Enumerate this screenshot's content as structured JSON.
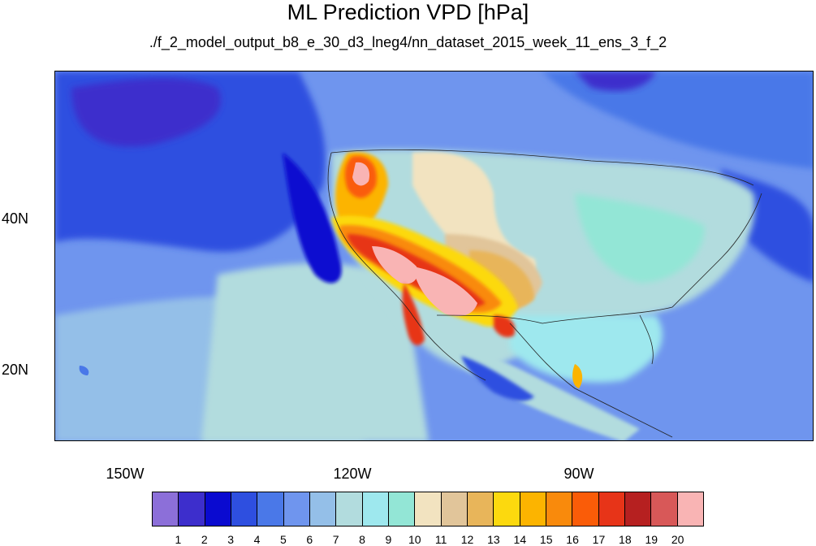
{
  "title": "ML Prediction VPD [hPa]",
  "subtitle": "./f_2_model_output_b8_e_30_d3_lneg4/nn_dataset_2015_week_11_ens_3_f_2",
  "lat_labels": [
    "40N",
    "20N"
  ],
  "lon_labels": [
    "150W",
    "120W",
    "90W"
  ],
  "colorbar": {
    "labels": [
      "1",
      "2",
      "3",
      "4",
      "5",
      "6",
      "7",
      "8",
      "9",
      "10",
      "11",
      "12",
      "13",
      "14",
      "15",
      "16",
      "17",
      "18",
      "19",
      "20"
    ],
    "colors": [
      "#8c6fd9",
      "#3d2ecc",
      "#0a0ad0",
      "#2e4fe0",
      "#4a78e8",
      "#6f95ee",
      "#94bfe8",
      "#b2dcde",
      "#9ee8ee",
      "#93e6d6",
      "#f2e3c0",
      "#e1c59a",
      "#e8b55a",
      "#fcd90e",
      "#fcb400",
      "#f98a0c",
      "#fa5c08",
      "#e73418",
      "#b62020",
      "#d85858",
      "#f9b4b4"
    ]
  },
  "colors": {
    "ocean_deep": "#3f58dc",
    "ocean_mid": "#6f95ee",
    "ocean_light": "#94bfe8",
    "land_moist": "#b2dcde",
    "dry": "#f2e3c0",
    "hot": "#f9b4b4"
  }
}
